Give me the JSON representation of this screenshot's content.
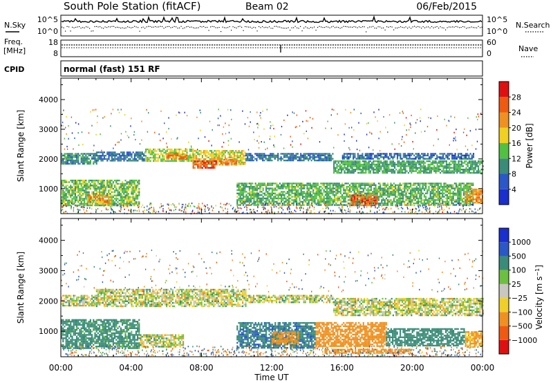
{
  "header": {
    "station": "South Pole Station (fitACF)",
    "beam": "Beam 02",
    "date": "06/Feb/2015"
  },
  "left_labels": {
    "nsky": "N.Sky",
    "freq_line1": "Freq.",
    "freq_line2": "[MHz]",
    "cpid": "CPID"
  },
  "right_labels": {
    "nsearch": "N.Search",
    "nave": "Nave"
  },
  "noise_panel": {
    "left_ticks": [
      "10^5",
      "10^0"
    ],
    "right_ticks": [
      "10^5",
      "10^0"
    ]
  },
  "freq_panel": {
    "left_ticks": [
      "18",
      "8"
    ],
    "right_ticks": [
      "60",
      "0"
    ]
  },
  "cpid_text": "normal (fast) 151 RF",
  "xaxis": {
    "label": "Time UT",
    "ticks": [
      "00:00",
      "04:00",
      "08:00",
      "12:00",
      "16:00",
      "20:00",
      "00:00"
    ]
  },
  "colors": {
    "power": [
      "#1a2fd0",
      "#2a58c8",
      "#3a8c78",
      "#52c040",
      "#f0d020",
      "#f09020",
      "#f05a10",
      "#e01010"
    ],
    "velocity": [
      "#e01010",
      "#f05a10",
      "#f09020",
      "#f0d028",
      "#c8c8c0",
      "#6cc040",
      "#3a8c78",
      "#2a58c8",
      "#1a2fd0"
    ]
  },
  "chart_data": [
    {
      "type": "heatmap",
      "name": "power",
      "xlabel": "Time UT",
      "ylabel": "Slant Range [km]",
      "x_range_hours": [
        0,
        24
      ],
      "ylim": [
        180,
        4700
      ],
      "yticks": [
        1000,
        2000,
        3000,
        4000
      ],
      "colorbar": {
        "label": "Power [dB]",
        "ticks": [
          4,
          8,
          12,
          16,
          20,
          24,
          28
        ],
        "range": [
          0,
          32
        ]
      },
      "bands": [
        {
          "t0": 0.0,
          "t1": 2.0,
          "r0": 1850,
          "r1": 2200,
          "level": 10
        },
        {
          "t0": 2.0,
          "t1": 4.8,
          "r0": 1950,
          "r1": 2250,
          "level": 8
        },
        {
          "t0": 4.8,
          "t1": 7.5,
          "r0": 1950,
          "r1": 2350,
          "level": 16
        },
        {
          "t0": 6.0,
          "t1": 7.2,
          "r0": 2000,
          "r1": 2200,
          "level": 24
        },
        {
          "t0": 7.5,
          "t1": 10.5,
          "r0": 1800,
          "r1": 2300,
          "level": 18
        },
        {
          "t0": 7.5,
          "t1": 8.8,
          "r0": 1700,
          "r1": 1950,
          "level": 26
        },
        {
          "t0": 9.0,
          "t1": 10.0,
          "r0": 1800,
          "r1": 2000,
          "level": 24
        },
        {
          "t0": 10.5,
          "t1": 15.5,
          "r0": 1950,
          "r1": 2200,
          "level": 8
        },
        {
          "t0": 15.5,
          "t1": 24.0,
          "r0": 1550,
          "r1": 1950,
          "level": 12
        },
        {
          "t0": 16.0,
          "t1": 23.5,
          "r0": 2000,
          "r1": 2200,
          "level": 7
        },
        {
          "t0": 0.0,
          "t1": 4.5,
          "r0": 450,
          "r1": 1300,
          "level": 14
        },
        {
          "t0": 1.5,
          "t1": 2.8,
          "r0": 500,
          "r1": 800,
          "level": 22
        },
        {
          "t0": 10.0,
          "t1": 23.5,
          "r0": 450,
          "r1": 1200,
          "level": 13
        },
        {
          "t0": 16.5,
          "t1": 18.0,
          "r0": 450,
          "r1": 800,
          "level": 26
        },
        {
          "t0": 23.0,
          "t1": 24.0,
          "r0": 500,
          "r1": 1000,
          "level": 22
        }
      ]
    },
    {
      "type": "heatmap",
      "name": "velocity",
      "xlabel": "Time UT",
      "ylabel": "Slant Range [km]",
      "x_range_hours": [
        0,
        24
      ],
      "ylim": [
        180,
        4700
      ],
      "yticks": [
        1000,
        2000,
        3000,
        4000
      ],
      "colorbar": {
        "label": "Velocity [m s-1]",
        "ticks": [
          -1000,
          -500,
          -100,
          -25,
          25,
          100,
          500,
          1000
        ],
        "tick_labels": [
          "−1000",
          "−500",
          "−100",
          "−25",
          "25",
          "100",
          "500",
          "1000"
        ],
        "range": [
          -1300,
          1300
        ]
      },
      "bands": [
        {
          "t0": 0.0,
          "t1": 2.0,
          "r0": 1850,
          "r1": 2200,
          "level": 10
        },
        {
          "t0": 2.0,
          "t1": 10.5,
          "r0": 1800,
          "r1": 2400,
          "level": 0
        },
        {
          "t0": 10.5,
          "t1": 15.5,
          "r0": 1950,
          "r1": 2200,
          "level": 0
        },
        {
          "t0": 15.5,
          "t1": 24.0,
          "r0": 1550,
          "r1": 2100,
          "level": 0
        },
        {
          "t0": 0.0,
          "t1": 4.5,
          "r0": 450,
          "r1": 1400,
          "level": 200
        },
        {
          "t0": 4.5,
          "t1": 7.0,
          "r0": 500,
          "r1": 900,
          "level": 0
        },
        {
          "t0": 10.0,
          "t1": 14.5,
          "r0": 450,
          "r1": 1300,
          "level": 450
        },
        {
          "t0": 12.0,
          "t1": 13.5,
          "r0": 600,
          "r1": 1000,
          "level": -350
        },
        {
          "t0": 14.5,
          "t1": 18.5,
          "r0": 500,
          "r1": 1300,
          "level": -300
        },
        {
          "t0": 18.5,
          "t1": 23.0,
          "r0": 500,
          "r1": 1100,
          "level": 300
        },
        {
          "t0": 23.0,
          "t1": 24.0,
          "r0": 500,
          "r1": 1000,
          "level": -150
        },
        {
          "t0": 15.0,
          "t1": 20.0,
          "r0": 280,
          "r1": 420,
          "level": -300
        }
      ]
    }
  ]
}
